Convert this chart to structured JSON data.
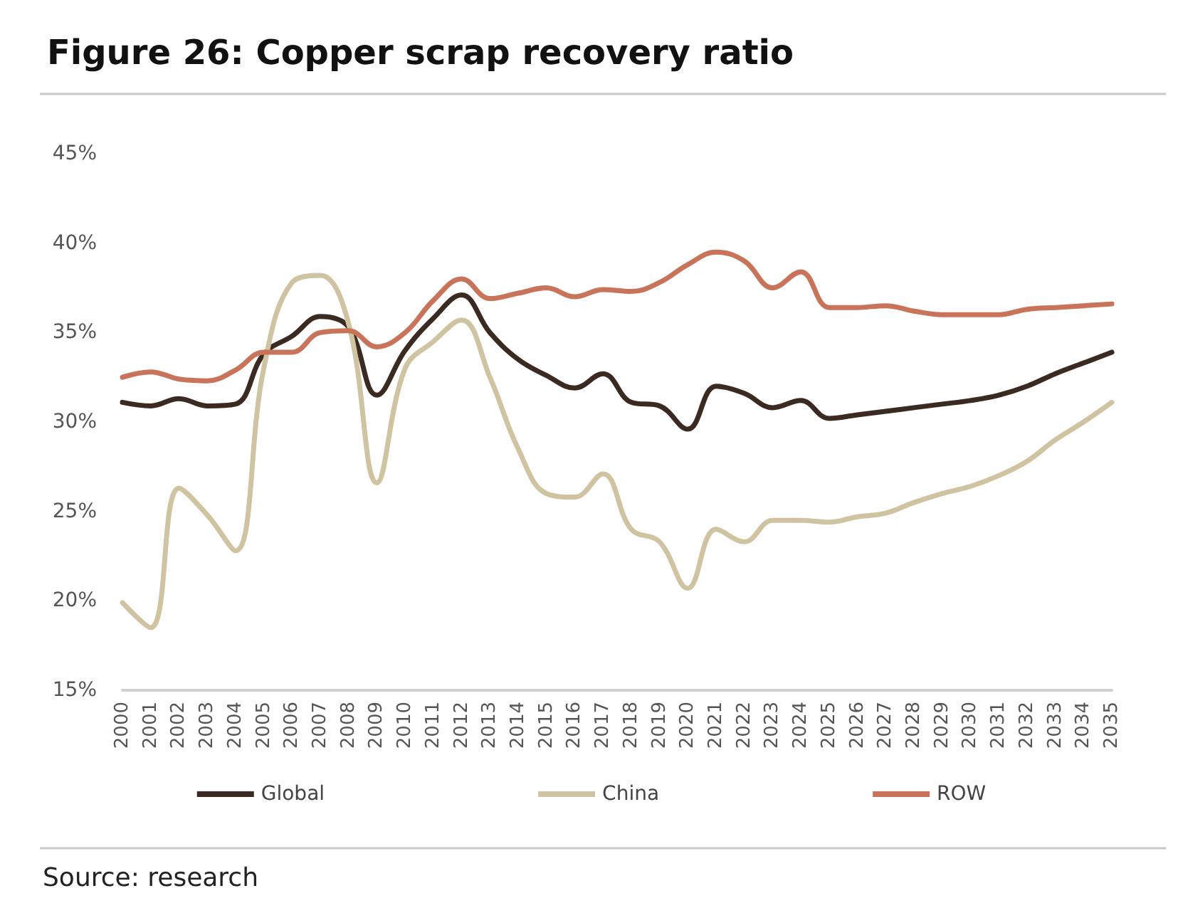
{
  "chart_data": {
    "type": "line",
    "title": "Figure 26: Copper scrap recovery ratio",
    "categories": [
      "2000",
      "2001",
      "2002",
      "2003",
      "2004",
      "2005",
      "2006",
      "2007",
      "2008",
      "2009",
      "2010",
      "2011",
      "2012",
      "2013",
      "2014",
      "2015",
      "2016",
      "2017",
      "2018",
      "2019",
      "2020",
      "2021",
      "2022",
      "2023",
      "2024",
      "2025",
      "2026",
      "2027",
      "2028",
      "2029",
      "2030",
      "2031",
      "2032",
      "2033",
      "2034",
      "2035"
    ],
    "series": [
      {
        "name": "Global",
        "color": "#3b2a22",
        "values": [
          31.1,
          30.9,
          31.3,
          30.9,
          31.0,
          33.8,
          34.8,
          35.9,
          35.3,
          31.5,
          34.0,
          35.8,
          37.1,
          35.0,
          33.5,
          32.6,
          31.9,
          32.7,
          31.1,
          30.9,
          29.6,
          32.0,
          31.6,
          30.8,
          31.2,
          30.2,
          30.4,
          30.6,
          30.8,
          31.0,
          31.2,
          31.5,
          32.0,
          32.7,
          33.3,
          33.9
        ]
      },
      {
        "name": "China",
        "color": "#cfc3a1",
        "values": [
          19.9,
          18.5,
          26.3,
          24.8,
          22.8,
          33.0,
          37.8,
          38.2,
          35.5,
          26.6,
          33.0,
          34.5,
          35.7,
          32.5,
          28.5,
          26.0,
          25.8,
          27.1,
          24.0,
          23.3,
          20.7,
          24.0,
          23.3,
          24.5,
          24.5,
          24.4,
          24.7,
          24.9,
          25.5,
          26.0,
          26.4,
          27.0,
          27.8,
          29.0,
          30.0,
          31.1
        ]
      },
      {
        "name": "ROW",
        "color": "#c9735a",
        "values": [
          32.5,
          32.8,
          32.4,
          32.3,
          32.9,
          33.9,
          33.9,
          35.0,
          35.1,
          34.2,
          35.0,
          36.8,
          38.0,
          36.9,
          37.2,
          37.5,
          37.0,
          37.4,
          37.3,
          37.8,
          38.8,
          39.5,
          39.0,
          37.5,
          38.4,
          36.4,
          36.4,
          36.5,
          36.2,
          36.0,
          36.0,
          36.0,
          36.3,
          36.4,
          36.5,
          36.6
        ]
      }
    ],
    "ylim": [
      15,
      45
    ],
    "yticks": [
      {
        "value": 15,
        "label": "15%"
      },
      {
        "value": 20,
        "label": "20%"
      },
      {
        "value": 25,
        "label": "25%"
      },
      {
        "value": 30,
        "label": "30%"
      },
      {
        "value": 35,
        "label": "35%"
      },
      {
        "value": 40,
        "label": "40%"
      },
      {
        "value": 45,
        "label": "45%"
      }
    ],
    "grid": false,
    "legend": "bottom",
    "marker": "none",
    "line_style": "solid",
    "annotations": [
      "Source: research"
    ]
  }
}
